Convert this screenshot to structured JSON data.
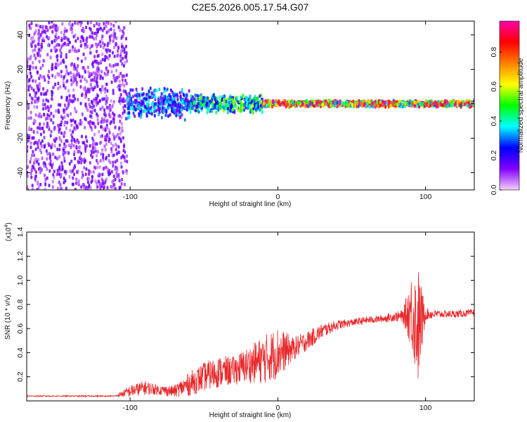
{
  "figure": {
    "title": "C2E5.2026.005.17.54.G07"
  },
  "chart_data": [
    {
      "type": "heatmap",
      "title": "C2E5.2026.005.17.54.G07",
      "xlabel": "Height of straight line (km)",
      "ylabel": "Frequency (Hz)",
      "xlim": [
        -170,
        133
      ],
      "ylim": [
        -50,
        48
      ],
      "xticks": [
        -100,
        0,
        100
      ],
      "xtick_labels": [
        "-100",
        "0",
        "100"
      ],
      "yticks": [
        -40,
        -20,
        0,
        20,
        40
      ],
      "ytick_labels": [
        "-40",
        "-20",
        "0",
        "20",
        "40"
      ],
      "colorbar": {
        "label": "Normalized spectral amplitude",
        "range": [
          0,
          0.98
        ],
        "ticks": [
          0,
          0.2,
          0.4,
          0.6,
          0.8
        ],
        "tick_labels": [
          "0.0",
          "0.2",
          "0.4",
          "0.6",
          "0.8"
        ],
        "stops": [
          "#f6d0ff",
          "#8000ff",
          "#0000ff",
          "#00ffff",
          "#00ff00",
          "#ffff00",
          "#ff8000",
          "#ff0000",
          "#ff00aa"
        ]
      },
      "regions": [
        {
          "x_range": [
            -170,
            -102
          ],
          "f_range": [
            -50,
            48
          ],
          "amplitude": 0.12,
          "description": "noise"
        },
        {
          "x_range": [
            -102,
            -60
          ],
          "f_range": [
            -10,
            10
          ],
          "amplitude": 0.3
        },
        {
          "x_range": [
            -60,
            -10
          ],
          "f_range": [
            -5,
            6
          ],
          "amplitude": 0.45
        },
        {
          "x_range": [
            -10,
            133
          ],
          "f_range": [
            -2,
            2
          ],
          "amplitude": 0.8
        }
      ],
      "ridge_center_hz": 0
    },
    {
      "type": "line",
      "xlabel": "Height of straight line (km)",
      "ylabel": "SNR (10 * v/v)",
      "y_scale_label": "(x10",
      "y_scale_exponent": "4",
      "color": "#e8282b",
      "xlim": [
        -170,
        133
      ],
      "ylim": [
        0,
        1.4
      ],
      "xticks": [
        -100,
        0,
        100
      ],
      "xtick_labels": [
        "-100",
        "0",
        "100"
      ],
      "yticks": [
        0.2,
        0.4,
        0.6,
        0.8,
        1.0,
        1.2,
        1.4
      ],
      "ytick_labels": [
        "0.2",
        "0.4",
        "0.6",
        "0.8",
        "1.0",
        "1.2",
        "1.4"
      ],
      "x": [
        -170,
        -150,
        -130,
        -110,
        -100,
        -90,
        -80,
        -70,
        -60,
        -50,
        -40,
        -30,
        -20,
        -10,
        0,
        10,
        20,
        30,
        40,
        50,
        60,
        70,
        80,
        85,
        90,
        95,
        100,
        110,
        120,
        133
      ],
      "y": [
        0.04,
        0.04,
        0.04,
        0.04,
        0.08,
        0.11,
        0.09,
        0.08,
        0.14,
        0.2,
        0.24,
        0.25,
        0.3,
        0.34,
        0.4,
        0.43,
        0.5,
        0.58,
        0.63,
        0.65,
        0.67,
        0.68,
        0.7,
        0.7,
        0.75,
        0.62,
        0.72,
        0.72,
        0.72,
        0.73
      ],
      "noise_amplitude": [
        0.005,
        0.005,
        0.005,
        0.005,
        0.05,
        0.06,
        0.04,
        0.05,
        0.1,
        0.12,
        0.13,
        0.12,
        0.15,
        0.2,
        0.22,
        0.1,
        0.08,
        0.06,
        0.04,
        0.03,
        0.03,
        0.03,
        0.04,
        0.06,
        0.3,
        0.5,
        0.05,
        0.03,
        0.03,
        0.03
      ]
    }
  ]
}
